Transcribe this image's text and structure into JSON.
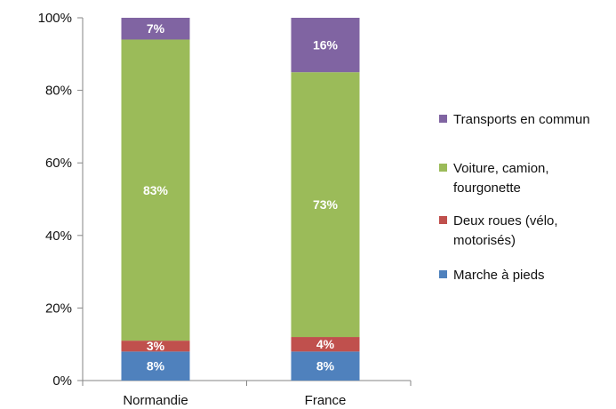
{
  "chart_data": {
    "type": "bar",
    "stacked": true,
    "categories": [
      "Normandie",
      "France"
    ],
    "series": [
      {
        "name": "Marche à pieds",
        "values": [
          8,
          8
        ],
        "labels": [
          "8%",
          "8%"
        ],
        "color": "#4f81bd"
      },
      {
        "name": "Deux roues (vélo, motorisés)",
        "values": [
          3,
          4
        ],
        "labels": [
          "3%",
          "4%"
        ],
        "color": "#c0504d"
      },
      {
        "name": "Voiture, camion, fourgonette",
        "values": [
          83,
          73
        ],
        "labels": [
          "83%",
          "73%"
        ],
        "color": "#9bbb59"
      },
      {
        "name": "Transports en commun",
        "values": [
          7,
          16
        ],
        "labels": [
          "7%",
          "16%"
        ],
        "color": "#8064a2"
      }
    ],
    "ylim": [
      0,
      100
    ],
    "yticks": [
      0,
      20,
      40,
      60,
      80,
      100
    ],
    "ytick_labels": [
      "0%",
      "20%",
      "40%",
      "60%",
      "80%",
      "100%"
    ],
    "legend_position": "right",
    "legend": [
      {
        "lines": [
          "Transports en commun"
        ],
        "color": "#8064a2"
      },
      {
        "lines": [
          "Voiture, camion,",
          "fourgonette"
        ],
        "color": "#9bbb59"
      },
      {
        "lines": [
          "Deux roues (vélo,",
          "motorisés)"
        ],
        "color": "#c0504d"
      },
      {
        "lines": [
          "Marche à pieds"
        ],
        "color": "#4f81bd"
      }
    ],
    "grid": false,
    "title": "",
    "xlabel": "",
    "ylabel": ""
  }
}
